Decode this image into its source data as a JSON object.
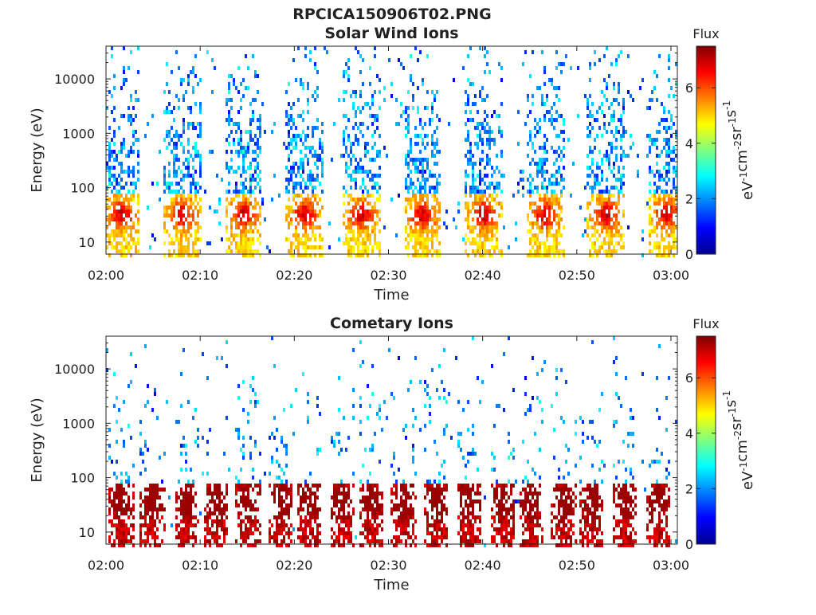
{
  "figure_title": "RPCICA150906T02.PNG",
  "chart_data": [
    {
      "type": "heatmap",
      "title": "Solar Wind Ions",
      "xlabel": "Time",
      "ylabel": "Energy (eV)",
      "x_ticks": [
        "02:00",
        "02:10",
        "02:20",
        "02:30",
        "02:40",
        "02:50",
        "03:00"
      ],
      "y_ticks": [
        "10",
        "100",
        "1000",
        "10000"
      ],
      "y_scale": "log",
      "ylim": [
        6,
        40000
      ],
      "colorbar": {
        "title": "Flux",
        "label": "eV-1cm-2sr-1s-1",
        "ticks": [
          "0",
          "2",
          "4",
          "6"
        ],
        "range": [
          0,
          7.5
        ],
        "colormap": "jet"
      },
      "bursts_minutes": [
        1.5,
        8,
        14.5,
        21,
        27,
        33.5,
        40,
        46.5,
        53,
        59.5
      ],
      "peak_energy_eV": 35,
      "peak_flux_range": [
        3.5,
        5.5
      ],
      "grid": false
    },
    {
      "type": "heatmap",
      "title": "Cometary Ions",
      "xlabel": "Time",
      "ylabel": "Energy (eV)",
      "x_ticks": [
        "02:00",
        "02:10",
        "02:20",
        "02:30",
        "02:40",
        "02:50",
        "03:00"
      ],
      "y_ticks": [
        "10",
        "100",
        "1000",
        "10000"
      ],
      "y_scale": "log",
      "ylim": [
        6,
        40000
      ],
      "colorbar": {
        "title": "Flux",
        "label": "eV-1cm-2sr-1s-1",
        "ticks": [
          "0",
          "2",
          "4",
          "6"
        ],
        "range": [
          0,
          7.5
        ],
        "colormap": "jet"
      },
      "bursts_minutes": [
        1.5,
        4.8,
        8.5,
        11.5,
        15,
        18.5,
        21.5,
        25,
        28,
        31.5,
        35,
        38.5,
        42,
        45,
        48.5,
        51.5,
        55,
        58.5
      ],
      "peak_energy_eV": 40,
      "peak_flux_range": [
        5.5,
        7.2
      ],
      "grid": false
    }
  ]
}
